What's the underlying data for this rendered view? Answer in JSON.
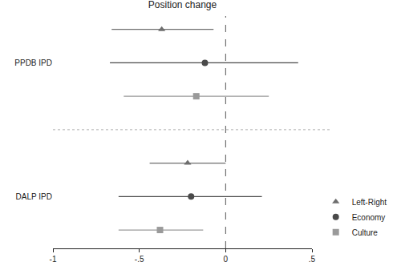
{
  "chart_data": {
    "type": "dot_whisker",
    "title": "Position change",
    "orientation": "horizontal",
    "categories": [
      "PPDB IPD",
      "DALP IPD"
    ],
    "series": [
      {
        "name": "Left-Right",
        "marker": "triangle-up",
        "color": "#6e6e6e",
        "values": [
          -0.37,
          -0.22
        ],
        "ci_low": [
          -0.66,
          -0.44
        ],
        "ci_high": [
          -0.07,
          0.0
        ]
      },
      {
        "name": "Economy",
        "marker": "circle",
        "color": "#4a4a4a",
        "values": [
          -0.12,
          -0.2
        ],
        "ci_low": [
          -0.67,
          -0.62
        ],
        "ci_high": [
          0.42,
          0.21
        ]
      },
      {
        "name": "Culture",
        "marker": "square",
        "color": "#9a9a9a",
        "values": [
          -0.17,
          -0.38
        ],
        "ci_low": [
          -0.59,
          -0.62
        ],
        "ci_high": [
          0.25,
          -0.13
        ]
      }
    ],
    "reference_line": 0,
    "xlim": [
      -1,
      0.5
    ],
    "xticks": [
      -1,
      {
        "value": -0.5,
        "label": "-.5"
      },
      0,
      {
        "value": 0.5,
        "label": ".5"
      }
    ],
    "grid": false,
    "legend": "lower right"
  }
}
